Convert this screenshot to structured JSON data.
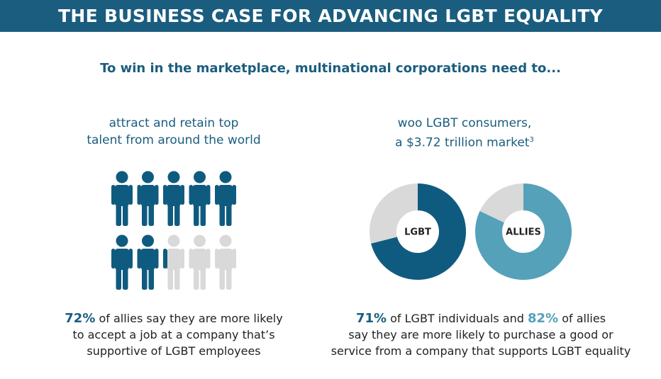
{
  "header": {
    "title": "THE BUSINESS CASE FOR ADVANCING LGBT EQUALITY"
  },
  "subtitle": "To win in the marketplace, multinational corporations need to...",
  "left": {
    "heading": [
      "attract and retain top",
      "talent from around the world"
    ],
    "caption": {
      "line1_rest": " of allies say they are more likely",
      "line2": "to accept a job at a company that’s",
      "line3": "supportive of LGBT employees"
    }
  },
  "right": {
    "heading": [
      "woo LGBT consumers,",
      "a $3.72 trillion market"
    ],
    "footnote": "3",
    "caption": {
      "line1_a": " of LGBT individuals and ",
      "line1_b": " of allies",
      "line2": "say they are more likely to purchase a good or",
      "line3": "service from a company that supports LGBT equality"
    }
  },
  "chart_data": [
    {
      "type": "pictogram",
      "values": [
        72
      ],
      "value_labels": [
        "72%"
      ],
      "color": "#0f5b80",
      "empty_color": "#d9d9d9"
    },
    {
      "type": "donut",
      "label": "LGBT",
      "values": [
        71
      ],
      "value_labels": [
        "71%"
      ],
      "color": "#0f5b80",
      "empty_color": "#d9d9d9"
    },
    {
      "type": "donut",
      "label": "ALLIES",
      "values": [
        82
      ],
      "value_labels": [
        "82%"
      ],
      "color": "#55a1ba",
      "empty_color": "#d9d9d9"
    }
  ]
}
